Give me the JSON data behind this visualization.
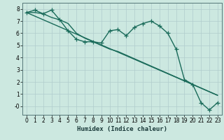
{
  "title": "",
  "xlabel": "Humidex (Indice chaleur)",
  "bg_color": "#cce8e0",
  "grid_color": "#b0cccc",
  "line_color": "#1a6b5a",
  "xlim": [
    -0.5,
    23.5
  ],
  "ylim": [
    -0.7,
    8.5
  ],
  "xticks": [
    0,
    1,
    2,
    3,
    4,
    5,
    6,
    7,
    8,
    9,
    10,
    11,
    12,
    13,
    14,
    15,
    16,
    17,
    18,
    19,
    20,
    21,
    22,
    23
  ],
  "yticks": [
    0,
    1,
    2,
    3,
    4,
    5,
    6,
    7,
    8
  ],
  "ytick_labels": [
    "-0",
    "1",
    "2",
    "3",
    "4",
    "5",
    "6",
    "7",
    "8"
  ],
  "series1_x": [
    0,
    1,
    2,
    3,
    4,
    5,
    6,
    7,
    8,
    9,
    10,
    11,
    12,
    13,
    14,
    15,
    16,
    17,
    18,
    19,
    20,
    21,
    22,
    23
  ],
  "series1_y": [
    7.7,
    7.9,
    7.6,
    7.9,
    7.1,
    6.2,
    5.5,
    5.3,
    5.3,
    5.2,
    6.2,
    6.3,
    5.8,
    6.5,
    6.8,
    7.0,
    6.6,
    6.0,
    4.7,
    2.2,
    1.8,
    0.3,
    -0.3,
    0.3
  ],
  "series2_x": [
    0,
    1,
    2,
    3,
    4,
    5,
    6,
    7,
    8,
    9,
    10,
    11,
    12,
    13,
    14,
    15,
    16,
    17,
    18,
    19,
    20,
    21,
    22,
    23
  ],
  "series2_y": [
    7.7,
    7.7,
    7.6,
    7.3,
    7.1,
    6.8,
    6.0,
    5.6,
    5.3,
    5.0,
    4.7,
    4.5,
    4.2,
    3.9,
    3.6,
    3.3,
    3.0,
    2.7,
    2.4,
    2.1,
    1.8,
    1.5,
    1.2,
    0.9
  ],
  "series3_x": [
    0,
    23
  ],
  "series3_y": [
    7.7,
    0.9
  ],
  "marker": "+",
  "markersize": 4,
  "linewidth": 1.0,
  "tick_fontsize": 5.5,
  "xlabel_fontsize": 6.5
}
